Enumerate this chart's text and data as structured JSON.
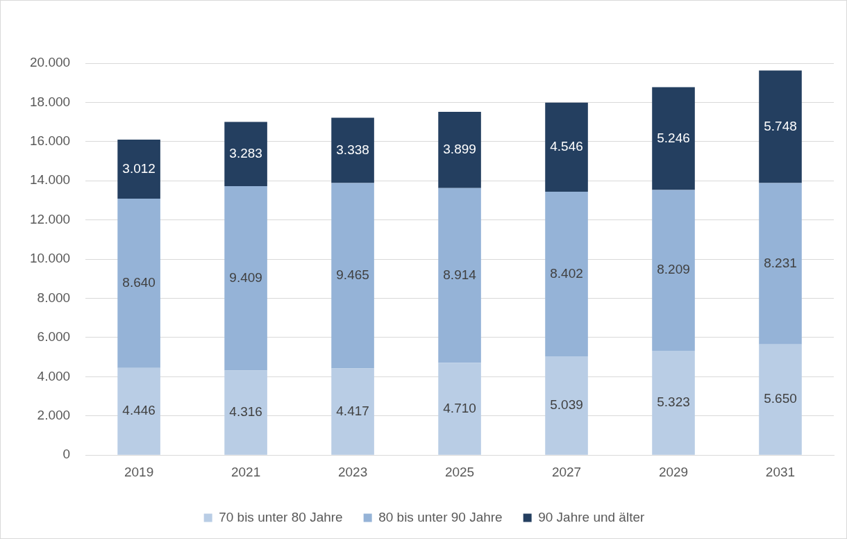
{
  "chart_data": {
    "type": "bar",
    "stacked": true,
    "categories": [
      "2019",
      "2021",
      "2023",
      "2025",
      "2027",
      "2029",
      "2031"
    ],
    "series": [
      {
        "name": "70 bis unter 80 Jahre",
        "color": "#b9cde5",
        "values": [
          4446,
          4316,
          4417,
          4710,
          5039,
          5323,
          5650
        ],
        "value_labels": [
          "4.446",
          "4.316",
          "4.417",
          "4.710",
          "5.039",
          "5.323",
          "5.650"
        ]
      },
      {
        "name": "80 bis unter 90 Jahre",
        "color": "#95b3d7",
        "values": [
          8640,
          9409,
          9465,
          8914,
          8402,
          8209,
          8231
        ],
        "value_labels": [
          "8.640",
          "9.409",
          "9.465",
          "8.914",
          "8.402",
          "8.209",
          "8.231"
        ]
      },
      {
        "name": "90 Jahre und älter",
        "color": "#243f60",
        "values": [
          3012,
          3283,
          3338,
          3899,
          4546,
          5246,
          5748
        ],
        "value_labels": [
          "3.012",
          "3.283",
          "3.338",
          "3.899",
          "4.546",
          "5.246",
          "5.748"
        ]
      }
    ],
    "ylim": [
      0,
      20000
    ],
    "yticks": [
      {
        "value": 0,
        "label": "0"
      },
      {
        "value": 2000,
        "label": "2.000"
      },
      {
        "value": 4000,
        "label": "4.000"
      },
      {
        "value": 6000,
        "label": "6.000"
      },
      {
        "value": 8000,
        "label": "8.000"
      },
      {
        "value": 10000,
        "label": "10.000"
      },
      {
        "value": 12000,
        "label": "12.000"
      },
      {
        "value": 14000,
        "label": "14.000"
      },
      {
        "value": 16000,
        "label": "16.000"
      },
      {
        "value": 18000,
        "label": "18.000"
      },
      {
        "value": 20000,
        "label": "20.000"
      }
    ],
    "grid": "y",
    "legend": "bottom"
  }
}
